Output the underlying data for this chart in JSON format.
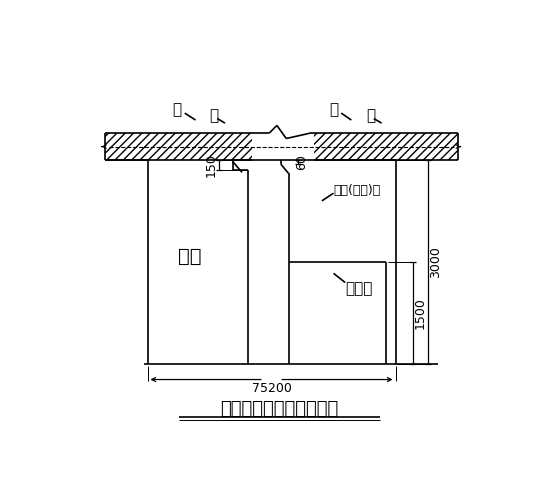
{
  "title": "混凝土浇筑口留设示意图",
  "bg_color": "#ffffff",
  "line_color": "#000000",
  "labels": {
    "ban_left": "板",
    "liang_left": "梁",
    "ban_right": "板",
    "liang_right": "梁",
    "column": "柱子",
    "steel_form": "钢模板",
    "pour_opening": "下料(振捣)口"
  },
  "dims": {
    "d150": "150",
    "d60": "60",
    "d1500": "1500",
    "d3000": "3000",
    "d75200": "75200"
  },
  "SL": 45,
  "SR": 500,
  "ST": 390,
  "SB": 355,
  "GL": 235,
  "GR": 315,
  "CL": 100,
  "CR": 210,
  "CB": 90,
  "RW": 420,
  "title_fontsize": 13,
  "label_fontsize": 11,
  "dim_fontsize": 9
}
